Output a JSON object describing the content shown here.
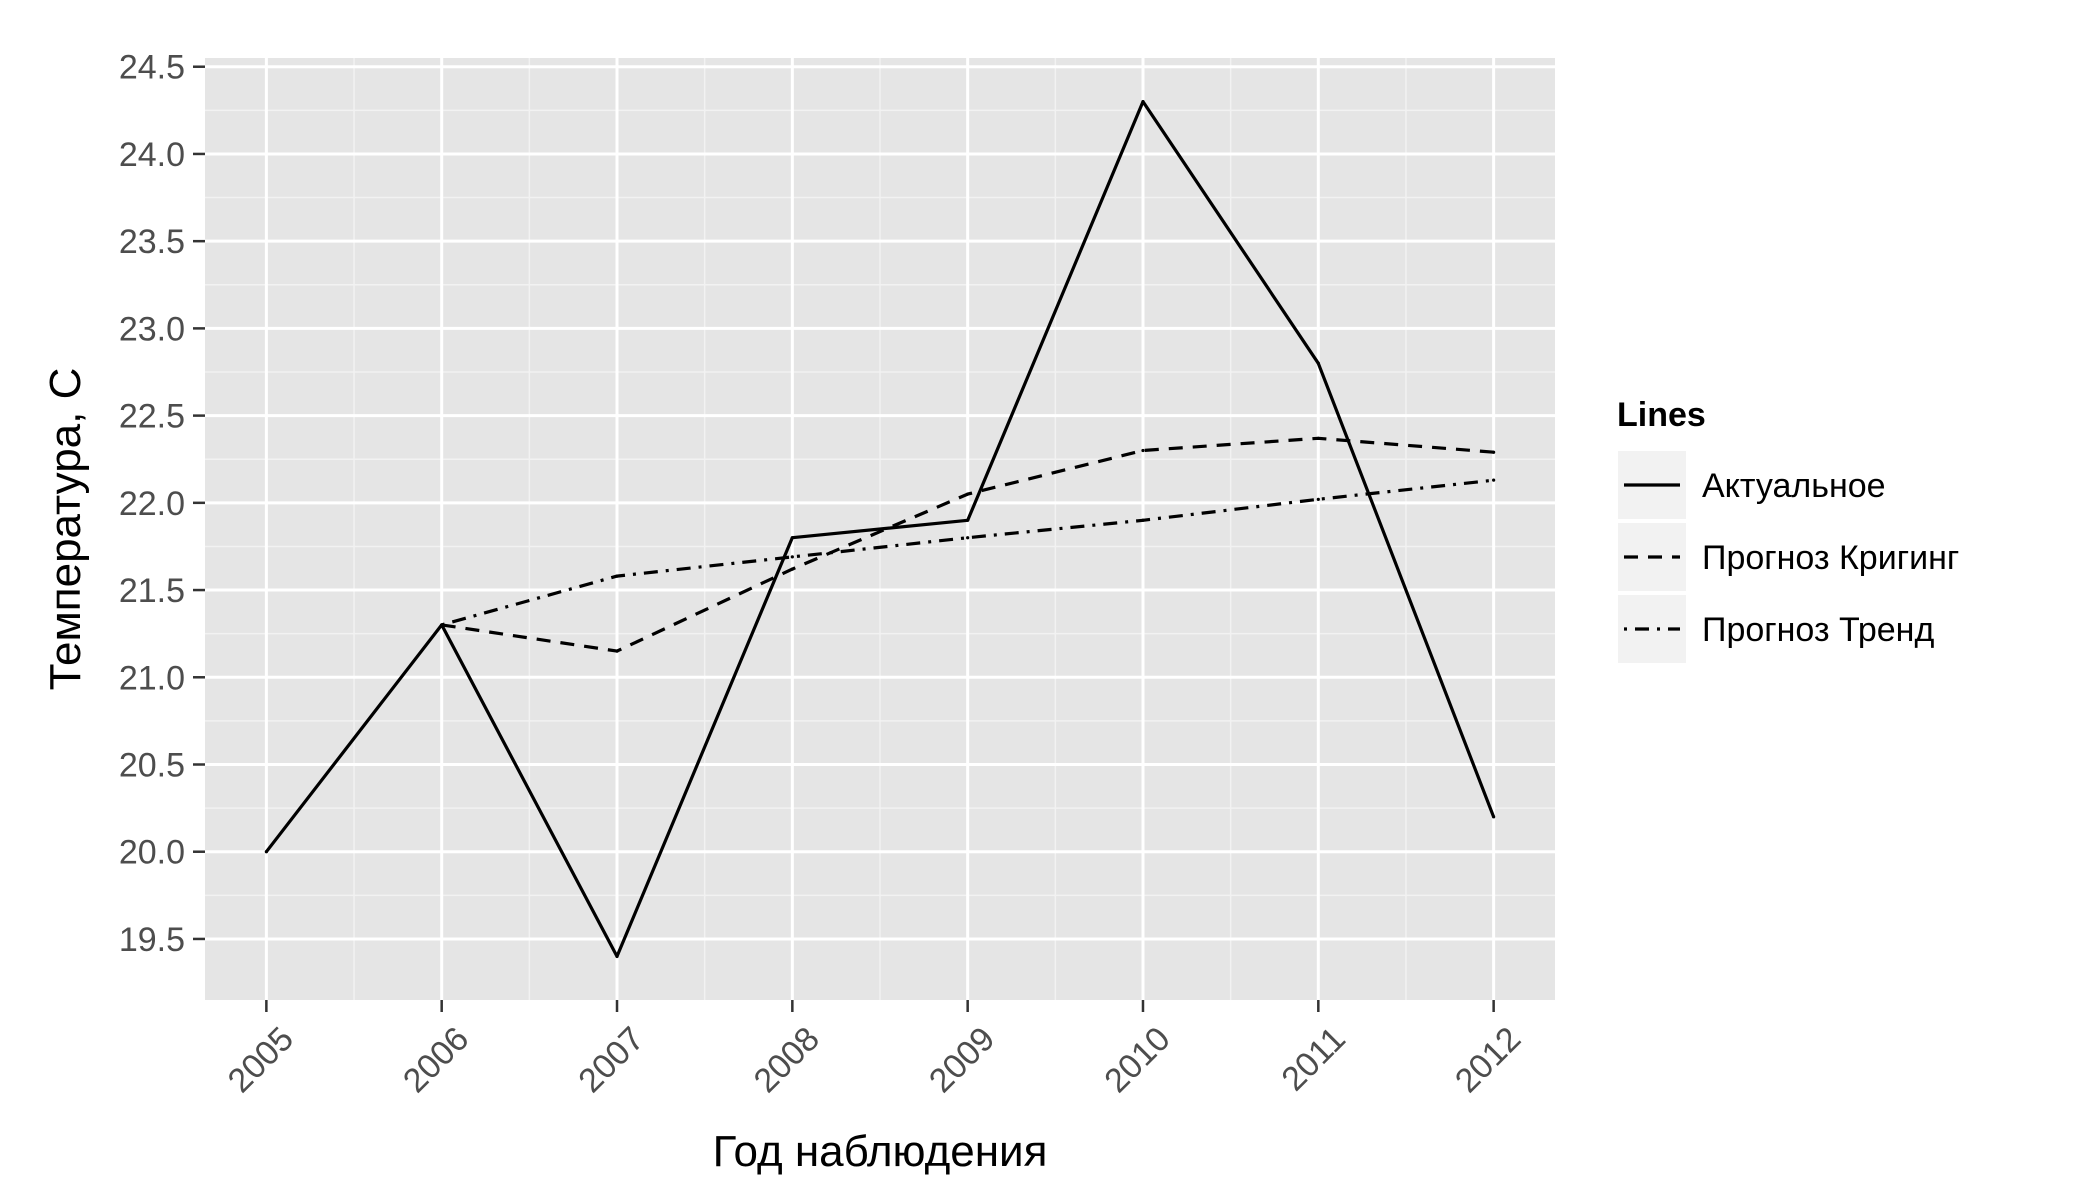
{
  "chart_data": {
    "type": "line",
    "xlabel": "Год наблюдения",
    "ylabel": "Температура, С",
    "x": [
      2005,
      2006,
      2007,
      2008,
      2009,
      2010,
      2011,
      2012
    ],
    "xlim": [
      2004.65,
      2012.35
    ],
    "ylim": [
      19.15,
      24.55
    ],
    "yticks": [
      19.5,
      20.0,
      20.5,
      21.0,
      21.5,
      22.0,
      22.5,
      23.0,
      23.5,
      24.0,
      24.5
    ],
    "ytick_labels": [
      "19.5",
      "20.0",
      "20.5",
      "21.0",
      "21.5",
      "22.0",
      "22.5",
      "23.0",
      "23.5",
      "24.0",
      "24.5"
    ],
    "xtick_labels": [
      "2005",
      "2006",
      "2007",
      "2008",
      "2009",
      "2010",
      "2011",
      "2012"
    ],
    "grid": true,
    "legend": {
      "title": "Lines",
      "position": "right"
    },
    "series": [
      {
        "name": "Актуальное",
        "linetype": "solid",
        "x": [
          2005,
          2006,
          2007,
          2008,
          2009,
          2010,
          2011,
          2012
        ],
        "values": [
          20.0,
          21.3,
          19.4,
          21.8,
          21.9,
          24.3,
          22.8,
          20.2
        ]
      },
      {
        "name": "Прогноз Кригинг",
        "linetype": "dashed",
        "x": [
          2006,
          2007,
          2008,
          2009,
          2010,
          2011,
          2012
        ],
        "values": [
          21.3,
          21.15,
          21.62,
          22.05,
          22.3,
          22.37,
          22.29
        ]
      },
      {
        "name": "Прогноз Тренд",
        "linetype": "dotdash",
        "x": [
          2006,
          2007,
          2008,
          2009,
          2010,
          2011,
          2012
        ],
        "values": [
          21.3,
          21.58,
          21.69,
          21.8,
          21.9,
          22.02,
          22.13
        ]
      }
    ],
    "colors": {
      "panel": "#e5e5e5",
      "grid": "#ffffff",
      "line": "#000000",
      "tick_text": "#4d4d4d",
      "legend_key": "#f2f2f2"
    }
  }
}
